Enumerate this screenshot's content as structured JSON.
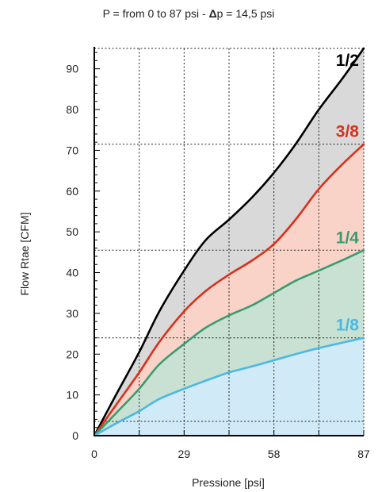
{
  "chart_data": {
    "type": "area",
    "title": {
      "prefix": "P = from 0 to 87 psi - ",
      "delta_symbol": "Δ",
      "suffix": "p = 14,5 psi"
    },
    "xlabel": "Pressione [psi]",
    "ylabel": "Flow Rtae [CFM]",
    "xlim": [
      0,
      87
    ],
    "ylim": [
      0,
      95
    ],
    "x_ticks": [
      0,
      29,
      58,
      87
    ],
    "x_tick_labels": [
      "0",
      "29",
      "58",
      "87"
    ],
    "y_ticks": [
      0,
      10,
      20,
      30,
      40,
      50,
      60,
      70,
      80,
      90
    ],
    "y_tick_labels": [
      "0",
      "10",
      "20",
      "30",
      "40",
      "50",
      "60",
      "70",
      "80",
      "90"
    ],
    "grid": true,
    "series": [
      {
        "name": "1/2",
        "color": "#000000",
        "fill": "#d9d9d9",
        "x": [
          0,
          7,
          14.5,
          21,
          29,
          36,
          43.5,
          51,
          58,
          65,
          72.5,
          80,
          87
        ],
        "y": [
          0,
          10,
          20.5,
          30.5,
          40.5,
          48,
          53,
          58.5,
          64.5,
          71.5,
          80,
          87.5,
          95
        ]
      },
      {
        "name": "3/8",
        "color": "#d9301c",
        "fill": "#f9d3c7",
        "x": [
          0,
          7,
          14.5,
          21,
          29,
          36,
          43.5,
          51,
          58,
          65,
          72.5,
          80,
          87
        ],
        "y": [
          0,
          7.5,
          15.5,
          23,
          30.5,
          35.5,
          39.5,
          43,
          47,
          53,
          60.5,
          66.5,
          71.5
        ]
      },
      {
        "name": "1/4",
        "color": "#3a9b6e",
        "fill": "#c8e1d2",
        "x": [
          0,
          7,
          14.5,
          21,
          29,
          36,
          43.5,
          51,
          58,
          65,
          72.5,
          80,
          87
        ],
        "y": [
          0,
          5.5,
          11.5,
          17.5,
          22.5,
          26.5,
          29.5,
          32,
          35,
          38,
          40.5,
          43,
          45.5
        ]
      },
      {
        "name": "1/8",
        "color": "#4bb8e3",
        "fill": "#d0eaf7",
        "x": [
          0,
          7,
          14.5,
          21,
          29,
          36,
          43.5,
          51,
          58,
          65,
          72.5,
          80,
          87
        ],
        "y": [
          0,
          3,
          6,
          9,
          11.5,
          13.5,
          15.5,
          17,
          18.5,
          20,
          21.5,
          22.8,
          24
        ]
      }
    ],
    "reference_lines_y": [
      3.5,
      24,
      45.5,
      71.5,
      95
    ]
  }
}
